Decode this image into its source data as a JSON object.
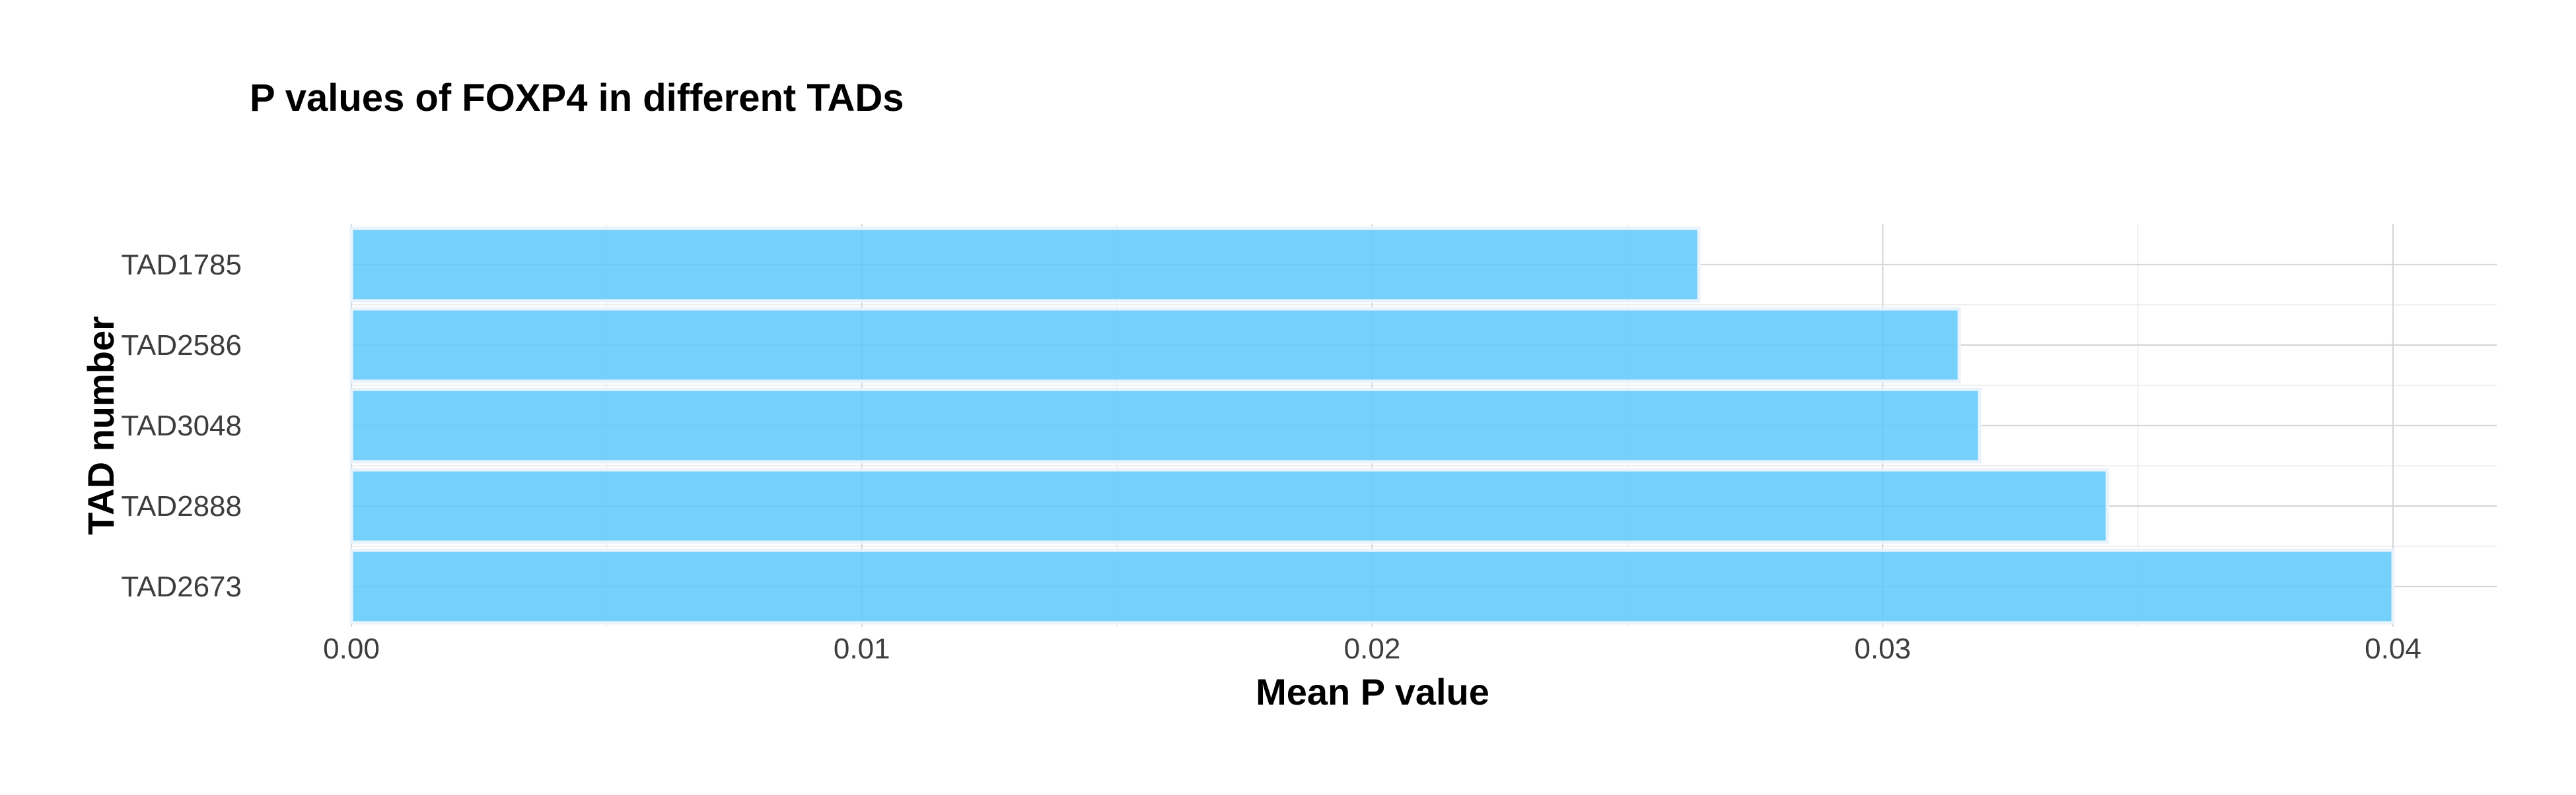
{
  "colors": {
    "bar_fill": "#5ec8fc",
    "background": "#ffffff"
  },
  "chart_data": {
    "type": "bar",
    "orientation": "horizontal",
    "title": "P values of FOXP4 in different TADs",
    "xlabel": "Mean P value",
    "ylabel": "TAD number",
    "categories": [
      "TAD1785",
      "TAD2586",
      "TAD3048",
      "TAD2888",
      "TAD2673"
    ],
    "values": [
      0.0264,
      0.0315,
      0.0319,
      0.0344,
      0.04
    ],
    "xlim": [
      0,
      0.042
    ],
    "xticks": [
      0.0,
      0.01,
      0.02,
      0.03,
      0.04
    ],
    "xtick_labels": [
      "0.00",
      "0.01",
      "0.02",
      "0.03",
      "0.04"
    ],
    "grid": true,
    "legend": false
  }
}
